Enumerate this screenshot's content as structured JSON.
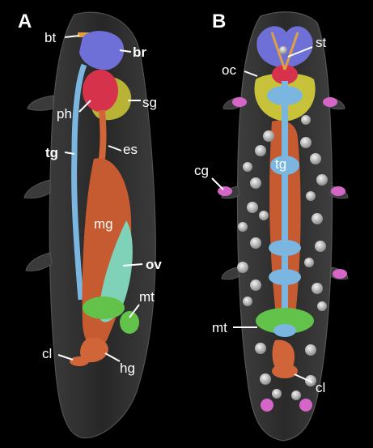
{
  "panels": [
    {
      "letter": "A"
    },
    {
      "letter": "B"
    }
  ],
  "labels_a": {
    "bt": "bt",
    "br": "br",
    "ph": "ph",
    "sg": "sg",
    "tg": "tg",
    "es": "es",
    "mg": "mg",
    "ov": "ov",
    "mt": "mt",
    "cl": "cl",
    "hg": "hg"
  },
  "labels_b": {
    "st": "st",
    "oc": "oc",
    "cg": "cg",
    "tg": "tg",
    "mt": "mt",
    "cl": "cl"
  },
  "colors": {
    "background": "#000000",
    "body_shell": "#3a3a3a",
    "brain": "#6f6fd8",
    "pharynx": "#d6324c",
    "salivary_gland": "#c7c23a",
    "nerve_ganglia": "#7ab6e0",
    "esophagus_gut": "#d1653a",
    "ovary": "#7fd1b8",
    "malpighian_tubules": "#62c24a",
    "claw_gland": "#d566c8",
    "storage_cells": "#cfcfcf",
    "buccal_tube": "#e0a040"
  }
}
